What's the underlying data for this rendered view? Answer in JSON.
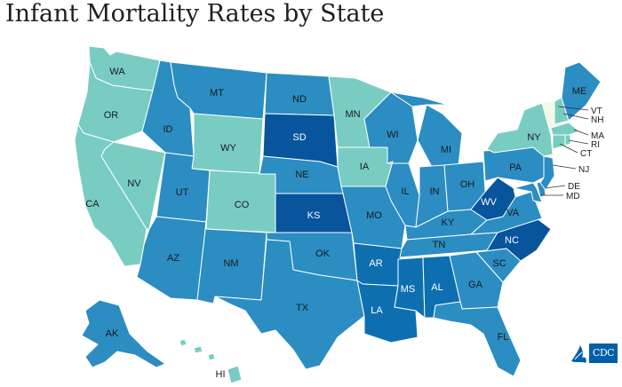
{
  "title": "Infant Mortality Rates by State",
  "logo_text": "CDC",
  "legend_colors": {
    "lightest": "#f2f7e6",
    "light": "#79ccc2",
    "medium": "#2b8dc2",
    "dark": "#0e6fb0",
    "darkest": "#08549d"
  },
  "states": {
    "WA": "WA",
    "OR": "OR",
    "CA": "CA",
    "NV": "NV",
    "ID": "ID",
    "MT": "MT",
    "WY": "WY",
    "UT": "UT",
    "AZ": "AZ",
    "CO": "CO",
    "NM": "NM",
    "ND": "ND",
    "SD": "SD",
    "NE": "NE",
    "KS": "KS",
    "OK": "OK",
    "TX": "TX",
    "MN": "MN",
    "IA": "IA",
    "MO": "MO",
    "AR": "AR",
    "LA": "LA",
    "WI": "WI",
    "IL": "IL",
    "MS": "MS",
    "MI": "MI",
    "IN": "IN",
    "KY": "KY",
    "TN": "TN",
    "AL": "AL",
    "OH": "OH",
    "WV": "WV",
    "VA": "VA",
    "NC": "NC",
    "SC": "SC",
    "GA": "GA",
    "FL": "FL",
    "PA": "PA",
    "NY": "NY",
    "ME": "ME",
    "VT": "VT",
    "NH": "NH",
    "MA": "MA",
    "RI": "RI",
    "CT": "CT",
    "NJ": "NJ",
    "DE": "DE",
    "MD": "MD",
    "AK": "AK",
    "HI": "HI"
  }
}
